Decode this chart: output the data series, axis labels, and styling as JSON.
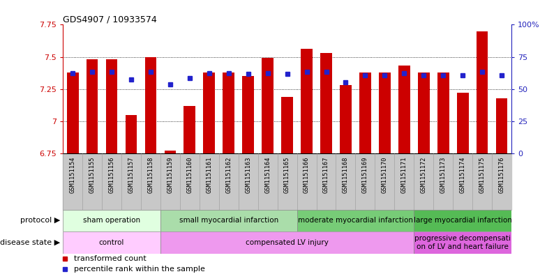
{
  "title": "GDS4907 / 10933574",
  "samples": [
    "GSM1151154",
    "GSM1151155",
    "GSM1151156",
    "GSM1151157",
    "GSM1151158",
    "GSM1151159",
    "GSM1151160",
    "GSM1151161",
    "GSM1151162",
    "GSM1151163",
    "GSM1151164",
    "GSM1151165",
    "GSM1151166",
    "GSM1151167",
    "GSM1151168",
    "GSM1151169",
    "GSM1151170",
    "GSM1151171",
    "GSM1151172",
    "GSM1151173",
    "GSM1151174",
    "GSM1151175",
    "GSM1151176"
  ],
  "bar_values": [
    7.38,
    7.48,
    7.48,
    7.05,
    7.5,
    6.77,
    7.12,
    7.38,
    7.38,
    7.35,
    7.49,
    7.19,
    7.56,
    7.53,
    7.28,
    7.38,
    7.38,
    7.43,
    7.38,
    7.38,
    7.22,
    7.7,
    7.18
  ],
  "blue_values": [
    7.375,
    7.385,
    7.385,
    7.325,
    7.385,
    7.285,
    7.335,
    7.375,
    7.375,
    7.365,
    7.375,
    7.365,
    7.385,
    7.385,
    7.305,
    7.355,
    7.355,
    7.375,
    7.355,
    7.355,
    7.355,
    7.385,
    7.355
  ],
  "ylim": [
    6.75,
    7.75
  ],
  "yticks": [
    6.75,
    7.0,
    7.25,
    7.5,
    7.75
  ],
  "ytick_labels": [
    "6.75",
    "7",
    "7.25",
    "7.5",
    "7.75"
  ],
  "right_yticks": [
    0,
    25,
    50,
    75,
    100
  ],
  "right_ytick_labels": [
    "0",
    "25",
    "50",
    "75",
    "100%"
  ],
  "bar_color": "#cc0000",
  "blue_color": "#2222cc",
  "bar_base": 6.75,
  "protocol_groups": [
    {
      "label": "sham operation",
      "start": 0,
      "end": 5,
      "color": "#e0ffe0"
    },
    {
      "label": "small myocardial infarction",
      "start": 5,
      "end": 12,
      "color": "#aaddaa"
    },
    {
      "label": "moderate myocardial infarction",
      "start": 12,
      "end": 18,
      "color": "#77cc77"
    },
    {
      "label": "large myocardial infarction",
      "start": 18,
      "end": 23,
      "color": "#55bb55"
    }
  ],
  "disease_groups": [
    {
      "label": "control",
      "start": 0,
      "end": 5,
      "color": "#ffccff"
    },
    {
      "label": "compensated LV injury",
      "start": 5,
      "end": 18,
      "color": "#ee99ee"
    },
    {
      "label": "progressive decompensati\non of LV and heart failure",
      "start": 18,
      "end": 23,
      "color": "#dd66dd"
    }
  ],
  "tick_color_left": "#cc0000",
  "tick_color_right": "#2222bb",
  "xtick_bg": "#c8c8c8"
}
